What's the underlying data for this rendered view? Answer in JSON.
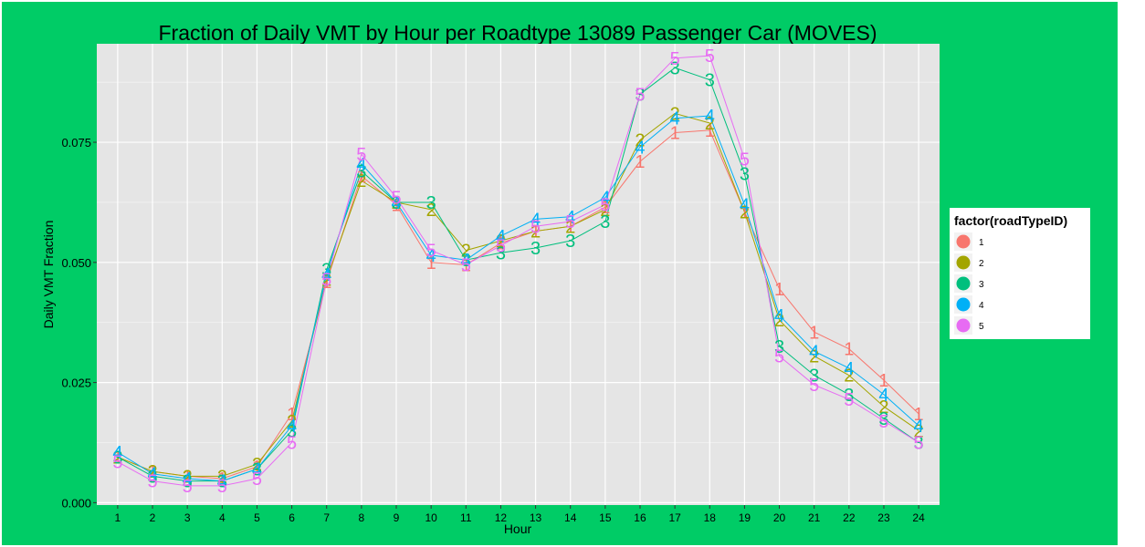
{
  "colors": {
    "background": "#00CC66",
    "panel": "#E5E5E5",
    "grid_major": "#FFFFFF",
    "grid_minor": "#F2F2F2",
    "legend_bg": "#FFFFFF"
  },
  "chart_data": {
    "type": "line",
    "title": "Fraction of Daily VMT by Hour per Roadtype 13089 Passenger Car (MOVES)",
    "xlabel": "Hour",
    "ylabel": "Daily VMT Fraction",
    "x": [
      1,
      2,
      3,
      4,
      5,
      6,
      7,
      8,
      9,
      10,
      11,
      12,
      13,
      14,
      15,
      16,
      17,
      18,
      19,
      20,
      21,
      22,
      23,
      24
    ],
    "xticks": [
      "1",
      "2",
      "3",
      "4",
      "5",
      "6",
      "7",
      "8",
      "9",
      "10",
      "11",
      "12",
      "13",
      "14",
      "15",
      "16",
      "17",
      "18",
      "19",
      "20",
      "21",
      "22",
      "23",
      "24"
    ],
    "yticks": [
      "0.000",
      "0.025",
      "0.050",
      "0.075"
    ],
    "ytick_values": [
      0,
      0.025,
      0.05,
      0.075
    ],
    "ylim": [
      -0.0005,
      0.0955
    ],
    "xlim": [
      0.4,
      24.6
    ],
    "grid": true,
    "point_markers": "series label digits",
    "legend": {
      "title": "factor(roadTypeID)",
      "position": "right",
      "entries": [
        "1",
        "2",
        "3",
        "4",
        "5"
      ]
    },
    "series": [
      {
        "name": "1",
        "color": "#F8766D",
        "values": [
          0.0095,
          0.0065,
          0.0055,
          0.005,
          0.0075,
          0.0185,
          0.046,
          0.068,
          0.062,
          0.05,
          0.0495,
          0.054,
          0.0565,
          0.0575,
          0.0615,
          0.071,
          0.077,
          0.0775,
          0.0605,
          0.0445,
          0.0355,
          0.032,
          0.0255,
          0.0185
        ]
      },
      {
        "name": "2",
        "color": "#A3A500",
        "values": [
          0.0095,
          0.0065,
          0.0055,
          0.0055,
          0.008,
          0.017,
          0.0465,
          0.067,
          0.0625,
          0.061,
          0.0525,
          0.0545,
          0.0565,
          0.0575,
          0.061,
          0.0755,
          0.081,
          0.079,
          0.0605,
          0.038,
          0.0305,
          0.0265,
          0.02,
          0.015
        ]
      },
      {
        "name": "3",
        "color": "#00BF7D",
        "values": [
          0.0095,
          0.0055,
          0.0045,
          0.0045,
          0.007,
          0.015,
          0.0485,
          0.069,
          0.0625,
          0.0625,
          0.0505,
          0.052,
          0.053,
          0.0545,
          0.0585,
          0.085,
          0.0905,
          0.088,
          0.0685,
          0.0325,
          0.0265,
          0.0225,
          0.0175,
          0.0125
        ]
      },
      {
        "name": "4",
        "color": "#00B0F6",
        "values": [
          0.0105,
          0.006,
          0.005,
          0.0045,
          0.007,
          0.016,
          0.0475,
          0.0705,
          0.0625,
          0.0515,
          0.0505,
          0.0555,
          0.059,
          0.0595,
          0.0635,
          0.074,
          0.08,
          0.0805,
          0.062,
          0.039,
          0.0315,
          0.028,
          0.0225,
          0.016
        ]
      },
      {
        "name": "5",
        "color": "#E76BF3",
        "values": [
          0.0085,
          0.0045,
          0.0035,
          0.0035,
          0.005,
          0.0125,
          0.0465,
          0.0725,
          0.0635,
          0.0525,
          0.0495,
          0.0535,
          0.0575,
          0.0585,
          0.062,
          0.085,
          0.0925,
          0.093,
          0.0715,
          0.0305,
          0.0245,
          0.0215,
          0.017,
          0.0125
        ]
      }
    ]
  }
}
